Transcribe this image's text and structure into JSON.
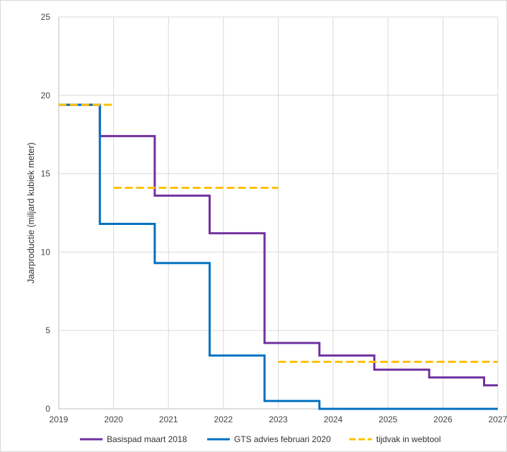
{
  "chart_data": {
    "type": "line",
    "title": "",
    "xlabel": "",
    "ylabel": "Jaarproductie (miljard kubiek meter)",
    "xlim": [
      2019,
      2027
    ],
    "ylim": [
      0,
      25
    ],
    "x_ticks": [
      "2019",
      "2020",
      "2021",
      "2022",
      "2023",
      "2024",
      "2025",
      "2026",
      "2027"
    ],
    "y_ticks": [
      "0",
      "5",
      "10",
      "15",
      "20",
      "25"
    ],
    "grid": true,
    "legend_position": "bottom",
    "series": [
      {
        "name": "Basispad maart 2018",
        "style": "step",
        "color": "#7030a0",
        "x": [
          2019.0,
          2019.75,
          2019.75,
          2020.75,
          2020.75,
          2021.75,
          2021.75,
          2022.75,
          2022.75,
          2023.75,
          2023.75,
          2024.75,
          2024.75,
          2025.75,
          2025.75,
          2026.75,
          2026.75,
          2027.0
        ],
        "y": [
          19.4,
          19.4,
          17.4,
          17.4,
          13.6,
          13.6,
          11.2,
          11.2,
          4.2,
          4.2,
          3.4,
          3.4,
          2.5,
          2.5,
          2.0,
          2.0,
          1.5,
          1.5
        ]
      },
      {
        "name": "GTS advies februari 2020",
        "style": "step",
        "color": "#0070c0",
        "x": [
          2019.0,
          2019.75,
          2019.75,
          2020.75,
          2020.75,
          2021.75,
          2021.75,
          2022.75,
          2022.75,
          2023.75,
          2023.75,
          2027.0
        ],
        "y": [
          19.4,
          19.4,
          11.8,
          11.8,
          9.3,
          9.3,
          3.4,
          3.4,
          0.5,
          0.5,
          0.0,
          0.0
        ]
      },
      {
        "name": "tijdvak in webtool",
        "style": "dashed-segments",
        "color": "#ffc000",
        "segments": [
          {
            "x": [
              2019.0,
              2020.0
            ],
            "y": 19.4
          },
          {
            "x": [
              2020.0,
              2023.0
            ],
            "y": 14.1
          },
          {
            "x": [
              2023.0,
              2027.0
            ],
            "y": 3.0
          }
        ]
      }
    ]
  }
}
